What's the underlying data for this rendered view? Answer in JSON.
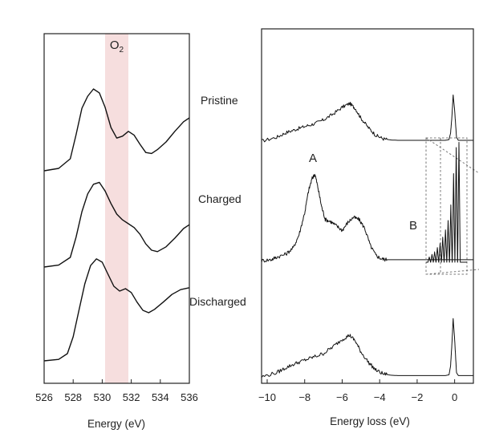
{
  "chart_data": [
    {
      "type": "line",
      "panel": "oxygen-k-edge",
      "xlabel": "Energy (eV)",
      "xlim": [
        526,
        536
      ],
      "x_ticks": [
        "526",
        "528",
        "530",
        "532",
        "534",
        "536"
      ],
      "highlight": {
        "label": "O",
        "label_sub": "2",
        "x_range": [
          530.2,
          531.8
        ],
        "color": "#f6dede"
      },
      "series": [
        {
          "name": "Pristine",
          "x": [
            526.0,
            527.0,
            527.8,
            528.2,
            528.6,
            529.0,
            529.4,
            529.8,
            530.2,
            530.6,
            531.0,
            531.4,
            531.8,
            532.2,
            532.6,
            533.0,
            533.4,
            533.8,
            534.4,
            535.0,
            535.6,
            536.0
          ],
          "y": [
            0.0,
            0.05,
            0.25,
            0.75,
            1.3,
            1.55,
            1.7,
            1.62,
            1.32,
            0.9,
            0.68,
            0.72,
            0.82,
            0.74,
            0.55,
            0.38,
            0.36,
            0.44,
            0.6,
            0.82,
            1.02,
            1.1
          ]
        },
        {
          "name": "Charged",
          "x": [
            526.0,
            527.0,
            527.8,
            528.2,
            528.6,
            529.0,
            529.4,
            529.8,
            530.2,
            530.6,
            531.0,
            531.4,
            531.8,
            532.2,
            532.6,
            533.0,
            533.4,
            533.8,
            534.4,
            535.0,
            535.6,
            536.0
          ],
          "y": [
            0.0,
            0.04,
            0.2,
            0.62,
            1.15,
            1.52,
            1.72,
            1.76,
            1.58,
            1.32,
            1.1,
            0.98,
            0.9,
            0.82,
            0.68,
            0.48,
            0.35,
            0.32,
            0.42,
            0.6,
            0.8,
            0.88
          ]
        },
        {
          "name": "Discharged",
          "x": [
            526.0,
            527.0,
            527.6,
            528.0,
            528.4,
            528.8,
            529.2,
            529.6,
            530.0,
            530.4,
            530.8,
            531.2,
            531.6,
            532.0,
            532.4,
            532.8,
            533.2,
            533.6,
            534.2,
            534.8,
            535.4,
            536.0
          ],
          "y": [
            0.0,
            0.03,
            0.15,
            0.5,
            1.05,
            1.6,
            1.98,
            2.12,
            2.05,
            1.8,
            1.55,
            1.45,
            1.5,
            1.42,
            1.22,
            1.05,
            1.0,
            1.07,
            1.22,
            1.38,
            1.48,
            1.52
          ]
        }
      ]
    },
    {
      "type": "line",
      "panel": "rixs-energy-loss",
      "xlabel": "Energy loss (eV)",
      "xlim": [
        -10.3,
        1.0
      ],
      "x_ticks": [
        "−10",
        "−8",
        "−6",
        "−4",
        "−2",
        "0"
      ],
      "annotations": [
        "A",
        "B"
      ],
      "state_labels": [
        "Pristine",
        "Charged",
        "Discharged"
      ],
      "series": [
        {
          "name": "Pristine",
          "x": [
            -10.3,
            -9.5,
            -9.0,
            -8.5,
            -8.0,
            -7.5,
            -7.0,
            -6.5,
            -6.0,
            -5.6,
            -5.3,
            -5.0,
            -4.6,
            -4.2,
            -3.8,
            -3.4,
            -3.0,
            -2.0,
            -1.0,
            -0.5,
            -0.3,
            -0.22,
            -0.15,
            -0.08,
            0.0,
            0.1,
            0.2,
            0.4,
            1.0
          ],
          "y": [
            0.0,
            0.1,
            0.22,
            0.3,
            0.38,
            0.45,
            0.55,
            0.7,
            0.88,
            0.98,
            0.85,
            0.6,
            0.35,
            0.15,
            0.06,
            0.03,
            0.02,
            0.02,
            0.02,
            0.02,
            0.04,
            0.2,
            0.6,
            1.2,
            0.8,
            0.1,
            0.02,
            0.02,
            0.02
          ]
        },
        {
          "name": "Charged",
          "x": [
            -10.3,
            -9.8,
            -9.5,
            -9.0,
            -8.6,
            -8.3,
            -8.0,
            -7.8,
            -7.6,
            -7.45,
            -7.3,
            -7.1,
            -6.9,
            -6.6,
            -6.3,
            -6.0,
            -5.7,
            -5.4,
            -5.1,
            -4.8,
            -4.5,
            -4.2,
            -3.9,
            -3.6,
            -3.2,
            -2.8,
            -2.4,
            -2.0,
            -1.6,
            -1.2,
            -0.8,
            -0.4,
            0.0,
            0.4,
            1.0
          ],
          "y": [
            0.0,
            0.02,
            0.08,
            0.15,
            0.3,
            0.6,
            1.1,
            1.6,
            1.9,
            2.0,
            1.7,
            1.25,
            0.95,
            0.9,
            0.8,
            0.7,
            0.88,
            1.0,
            0.95,
            0.75,
            0.35,
            0.12,
            0.04,
            0.02,
            0.02,
            0.02,
            0.02,
            0.02,
            0.02,
            0.02,
            0.02,
            0.02,
            0.02,
            0.02,
            0.02
          ]
        },
        {
          "name": "Discharged",
          "x": [
            -10.3,
            -9.5,
            -9.0,
            -8.5,
            -8.0,
            -7.5,
            -7.0,
            -6.5,
            -6.0,
            -5.6,
            -5.3,
            -5.0,
            -4.6,
            -4.2,
            -3.8,
            -3.4,
            -3.0,
            -2.0,
            -1.0,
            -0.5,
            -0.3,
            -0.22,
            -0.15,
            -0.08,
            0.0,
            0.1,
            0.2,
            0.4,
            1.0
          ],
          "y": [
            0.0,
            0.1,
            0.22,
            0.32,
            0.4,
            0.48,
            0.56,
            0.72,
            0.9,
            1.0,
            0.86,
            0.6,
            0.35,
            0.16,
            0.07,
            0.04,
            0.03,
            0.03,
            0.03,
            0.03,
            0.05,
            0.25,
            0.75,
            1.4,
            0.9,
            0.1,
            0.03,
            0.03,
            0.03
          ]
        }
      ],
      "inset_peaks": {
        "x": [
          -1.65,
          -1.5,
          -1.35,
          -1.2,
          -1.05,
          -0.9,
          -0.75,
          -0.6,
          -0.45,
          -0.3,
          -0.15,
          0.0
        ],
        "y": [
          0.1,
          0.15,
          0.2,
          0.28,
          0.36,
          0.48,
          0.62,
          0.8,
          1.1,
          1.7,
          2.2,
          2.3
        ]
      }
    }
  ]
}
